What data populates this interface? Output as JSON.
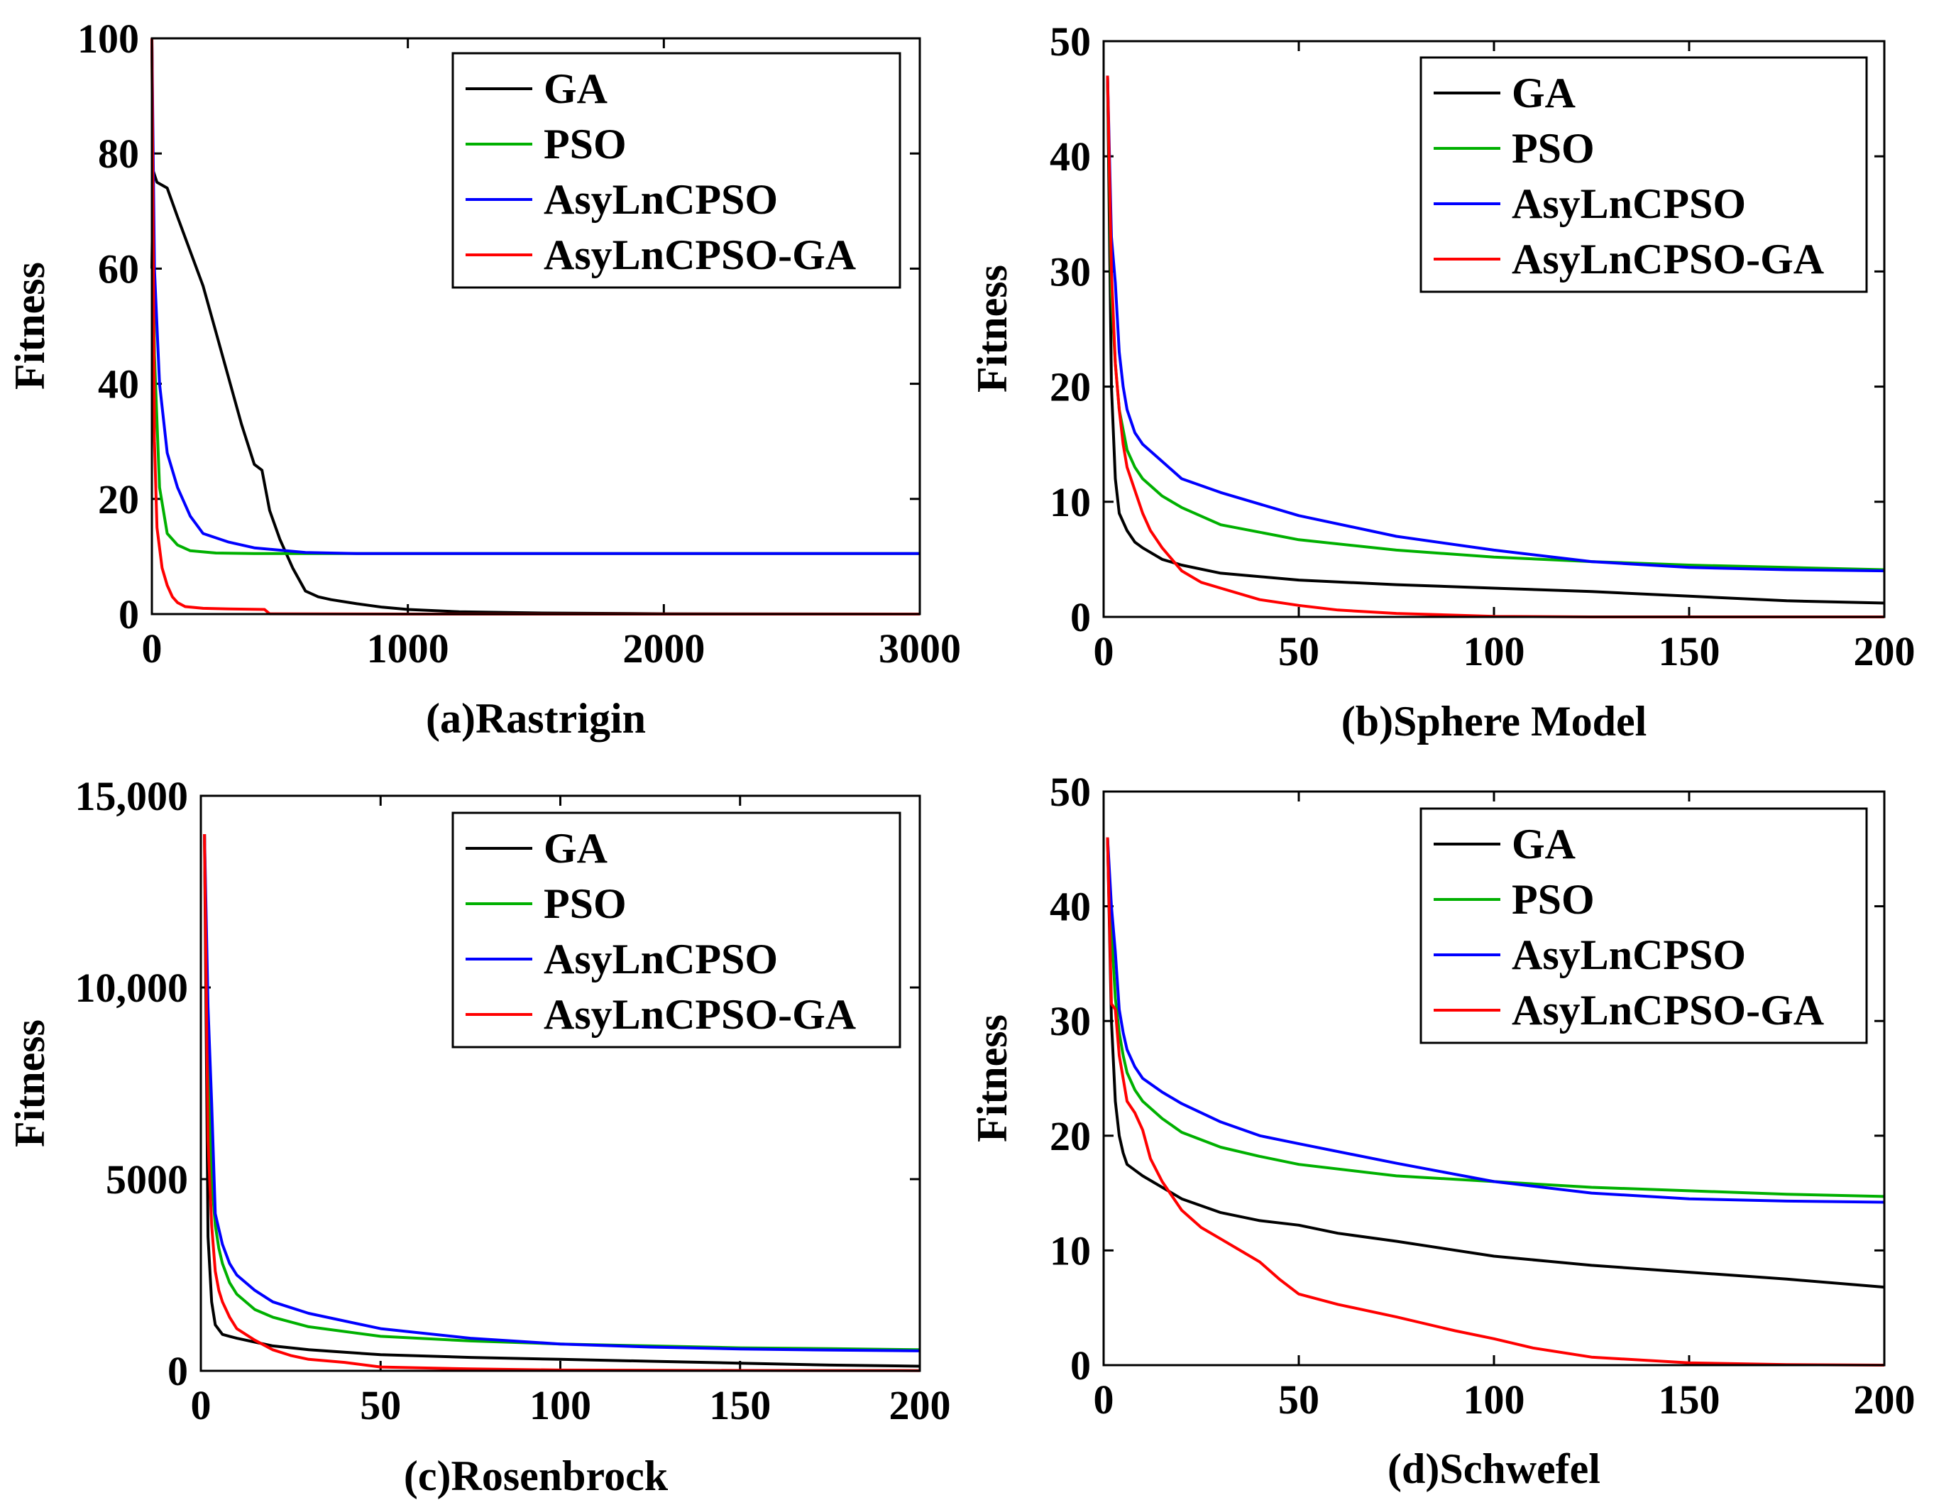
{
  "chart_data": [
    {
      "type": "line",
      "caption": "(a)Rastrigin",
      "ylabel": "Fitness",
      "xlim": [
        0,
        3000
      ],
      "ylim": [
        0,
        100
      ],
      "xticks": [
        0,
        1000,
        2000,
        3000
      ],
      "xtick_labels": [
        "0",
        "1000",
        "2000",
        "3000"
      ],
      "yticks": [
        0,
        20,
        40,
        60,
        80,
        100
      ],
      "ytick_labels": [
        "0",
        "20",
        "40",
        "60",
        "80",
        "100"
      ],
      "legend_position": "top-right",
      "series": [
        {
          "name": "GA",
          "color": "#000000",
          "x": [
            0,
            5,
            20,
            60,
            100,
            150,
            200,
            250,
            300,
            350,
            400,
            430,
            460,
            500,
            550,
            600,
            650,
            700,
            800,
            900,
            1000,
            1200,
            1500,
            2000,
            3000
          ],
          "y": [
            60,
            77,
            75,
            74,
            69,
            63,
            57,
            49,
            41,
            33,
            26,
            25,
            18,
            13,
            8,
            4,
            3,
            2.5,
            1.8,
            1.2,
            0.8,
            0.4,
            0.2,
            0.05,
            0
          ]
        },
        {
          "name": "PSO",
          "color": "#00b000",
          "x": [
            0,
            10,
            30,
            60,
            100,
            150,
            250,
            400,
            600,
            1000,
            3000
          ],
          "y": [
            100,
            45,
            22,
            14,
            12,
            11,
            10.6,
            10.5,
            10.5,
            10.5,
            10.5
          ]
        },
        {
          "name": "AsyLnCPSO",
          "color": "#0000ff",
          "x": [
            0,
            10,
            30,
            60,
            100,
            150,
            200,
            300,
            400,
            600,
            800,
            1000,
            3000
          ],
          "y": [
            100,
            60,
            40,
            28,
            22,
            17,
            14,
            12.5,
            11.5,
            10.7,
            10.5,
            10.5,
            10.5
          ]
        },
        {
          "name": "AsyLnCPSO-GA",
          "color": "#ff0000",
          "x": [
            0,
            10,
            20,
            40,
            60,
            80,
            100,
            130,
            200,
            300,
            440,
            460,
            1000,
            3000
          ],
          "y": [
            100,
            30,
            15,
            8,
            5,
            3,
            2,
            1.3,
            1,
            0.9,
            0.8,
            0.05,
            0,
            0
          ]
        }
      ]
    },
    {
      "type": "line",
      "caption": "(b)Sphere Model",
      "ylabel": "Fitness",
      "xlim": [
        0,
        200
      ],
      "ylim": [
        0,
        50
      ],
      "xticks": [
        0,
        50,
        100,
        150,
        200
      ],
      "xtick_labels": [
        "0",
        "50",
        "100",
        "150",
        "200"
      ],
      "yticks": [
        0,
        10,
        20,
        30,
        40,
        50
      ],
      "ytick_labels": [
        "0",
        "10",
        "20",
        "30",
        "40",
        "50"
      ],
      "legend_position": "top-right",
      "series": [
        {
          "name": "GA",
          "color": "#000000",
          "x": [
            1,
            2,
            3,
            4,
            6,
            8,
            10,
            15,
            20,
            30,
            50,
            75,
            100,
            125,
            150,
            175,
            200
          ],
          "y": [
            47,
            20,
            12,
            9,
            7.5,
            6.5,
            6,
            5,
            4.5,
            3.8,
            3.2,
            2.8,
            2.5,
            2.2,
            1.8,
            1.4,
            1.2
          ]
        },
        {
          "name": "PSO",
          "color": "#00b000",
          "x": [
            1,
            2,
            3,
            4,
            6,
            8,
            10,
            15,
            20,
            30,
            50,
            75,
            100,
            125,
            150,
            175,
            200
          ],
          "y": [
            47,
            28,
            22,
            18,
            14.5,
            13,
            12,
            10.5,
            9.5,
            8,
            6.7,
            5.8,
            5.2,
            4.8,
            4.5,
            4.3,
            4.1
          ]
        },
        {
          "name": "AsyLnCPSO",
          "color": "#0000ff",
          "x": [
            1,
            2,
            3,
            4,
            5,
            6,
            8,
            10,
            15,
            20,
            30,
            50,
            75,
            100,
            125,
            150,
            175,
            200
          ],
          "y": [
            47,
            33,
            29,
            23,
            20,
            18,
            16,
            15,
            13.5,
            12,
            10.8,
            8.8,
            7,
            5.8,
            4.8,
            4.3,
            4.1,
            4
          ]
        },
        {
          "name": "AsyLnCPSO-GA",
          "color": "#ff0000",
          "x": [
            1,
            2,
            3,
            4,
            5,
            6,
            8,
            10,
            12,
            15,
            20,
            25,
            30,
            40,
            50,
            60,
            75,
            100,
            125,
            150,
            200
          ],
          "y": [
            47,
            30,
            22,
            18,
            15,
            13,
            11,
            9,
            7.5,
            6,
            4,
            3,
            2.5,
            1.5,
            1,
            0.6,
            0.3,
            0.05,
            0,
            0,
            0
          ]
        }
      ]
    },
    {
      "type": "line",
      "caption": "(c)Rosenbrock",
      "ylabel": "Fitness",
      "xlim": [
        0,
        200
      ],
      "ylim": [
        0,
        15000
      ],
      "xticks": [
        0,
        50,
        100,
        150,
        200
      ],
      "xtick_labels": [
        "0",
        "50",
        "100",
        "150",
        "200"
      ],
      "yticks": [
        0,
        5000,
        10000,
        15000
      ],
      "ytick_labels": [
        "0",
        "5000",
        "10,000",
        "15,000"
      ],
      "legend_position": "top-right",
      "series": [
        {
          "name": "GA",
          "color": "#000000",
          "x": [
            1,
            2,
            3,
            4,
            6,
            8,
            10,
            15,
            20,
            30,
            50,
            75,
            100,
            125,
            150,
            175,
            200
          ],
          "y": [
            14000,
            3500,
            1800,
            1200,
            950,
            900,
            850,
            750,
            650,
            550,
            420,
            350,
            300,
            250,
            200,
            150,
            120
          ]
        },
        {
          "name": "PSO",
          "color": "#00b000",
          "x": [
            1,
            2,
            3,
            4,
            5,
            6,
            8,
            10,
            15,
            20,
            30,
            50,
            75,
            100,
            125,
            150,
            175,
            200
          ],
          "y": [
            14000,
            8000,
            5000,
            3800,
            3200,
            2800,
            2300,
            2000,
            1600,
            1400,
            1150,
            900,
            780,
            700,
            650,
            600,
            580,
            550
          ]
        },
        {
          "name": "AsyLnCPSO",
          "color": "#0000ff",
          "x": [
            1,
            2,
            3,
            4,
            5,
            6,
            8,
            10,
            15,
            20,
            30,
            50,
            75,
            100,
            125,
            150,
            175,
            200
          ],
          "y": [
            14000,
            9500,
            7000,
            4100,
            3700,
            3300,
            2800,
            2500,
            2100,
            1800,
            1500,
            1100,
            850,
            700,
            620,
            570,
            540,
            520
          ]
        },
        {
          "name": "AsyLnCPSO-GA",
          "color": "#ff0000",
          "x": [
            1,
            2,
            3,
            4,
            5,
            6,
            8,
            10,
            15,
            20,
            25,
            30,
            40,
            50,
            75,
            100,
            150,
            200
          ],
          "y": [
            14000,
            6000,
            3800,
            2600,
            2100,
            1800,
            1400,
            1100,
            800,
            550,
            400,
            300,
            220,
            100,
            50,
            20,
            10,
            5
          ]
        }
      ]
    },
    {
      "type": "line",
      "caption": "(d)Schwefel",
      "ylabel": "Fitness",
      "xlim": [
        0,
        200
      ],
      "ylim": [
        0,
        50
      ],
      "xticks": [
        0,
        50,
        100,
        150,
        200
      ],
      "xtick_labels": [
        "0",
        "50",
        "100",
        "150",
        "200"
      ],
      "yticks": [
        0,
        10,
        20,
        30,
        40,
        50
      ],
      "ytick_labels": [
        "0",
        "10",
        "20",
        "30",
        "40",
        "50"
      ],
      "legend_position": "top-right",
      "series": [
        {
          "name": "GA",
          "color": "#000000",
          "x": [
            1,
            2,
            3,
            4,
            5,
            6,
            8,
            10,
            15,
            20,
            30,
            40,
            50,
            60,
            75,
            100,
            125,
            150,
            175,
            200
          ],
          "y": [
            46,
            30,
            23,
            20,
            18.5,
            17.5,
            17,
            16.5,
            15.5,
            14.5,
            13.3,
            12.6,
            12.2,
            11.5,
            10.8,
            9.5,
            8.7,
            8.1,
            7.5,
            6.8
          ]
        },
        {
          "name": "PSO",
          "color": "#00b000",
          "x": [
            1,
            2,
            3,
            4,
            5,
            6,
            8,
            10,
            15,
            20,
            30,
            40,
            50,
            75,
            100,
            125,
            150,
            175,
            200
          ],
          "y": [
            46,
            38,
            32,
            29,
            27,
            25.5,
            24,
            23,
            21.5,
            20.3,
            19,
            18.2,
            17.5,
            16.5,
            16,
            15.5,
            15.2,
            14.9,
            14.7
          ]
        },
        {
          "name": "AsyLnCPSO",
          "color": "#0000ff",
          "x": [
            1,
            2,
            3,
            4,
            5,
            6,
            8,
            10,
            15,
            20,
            30,
            40,
            50,
            75,
            100,
            125,
            150,
            175,
            200
          ],
          "y": [
            46,
            40,
            36,
            31,
            29,
            27.5,
            26,
            25,
            23.8,
            22.8,
            21.2,
            20,
            19.3,
            17.6,
            16,
            15,
            14.5,
            14.3,
            14.2
          ]
        },
        {
          "name": "AsyLnCPSO-GA",
          "color": "#ff0000",
          "x": [
            1,
            2,
            3,
            4,
            5,
            6,
            8,
            10,
            12,
            15,
            20,
            25,
            30,
            35,
            40,
            45,
            50,
            60,
            75,
            90,
            100,
            110,
            125,
            150,
            175,
            200
          ],
          "y": [
            46,
            31.5,
            31,
            27,
            25,
            23,
            22,
            20.5,
            18,
            16,
            13.5,
            12,
            11,
            10,
            9,
            7.5,
            6.2,
            5.3,
            4.2,
            3,
            2.3,
            1.5,
            0.7,
            0.2,
            0.05,
            0
          ]
        }
      ]
    }
  ]
}
